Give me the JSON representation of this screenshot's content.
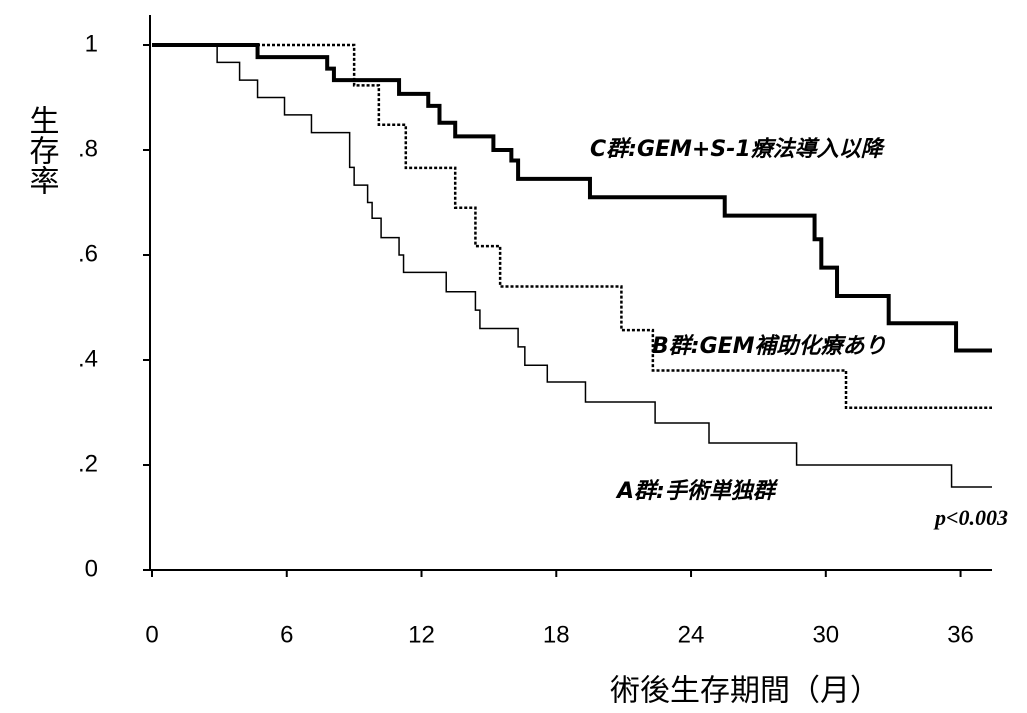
{
  "chart_data": {
    "type": "step",
    "y_label": "生存率",
    "x_label": "術後生存期間（月）",
    "xlim": [
      0,
      37.4
    ],
    "ylim": [
      0,
      1.05
    ],
    "xticks": [
      0,
      6,
      12,
      18,
      24,
      30,
      36
    ],
    "yticks": [
      0,
      {
        "value": 0.2,
        "label": ".2"
      },
      {
        "value": 0.4,
        "label": ".4"
      },
      {
        "value": 0.6,
        "label": ".6"
      },
      {
        "value": 0.8,
        "label": ".8"
      },
      1
    ],
    "annotations": [
      "C群:GEM+S-1療法導入以降",
      "B群:GEM補助化療あり",
      "A群:手術単独群",
      "p<0.003"
    ],
    "series": [
      {
        "color": "#000000",
        "line_width": 4,
        "dash": "none",
        "x": [
          0,
          4.7,
          7.8,
          8.1,
          11,
          12.3,
          12.8,
          13.5,
          15.2,
          16,
          16.3,
          19.5,
          25.5,
          29.5,
          29.8,
          30.5,
          32.8,
          35.8,
          37.4
        ],
        "values": [
          1,
          0.977,
          0.955,
          0.933,
          0.907,
          0.884,
          0.852,
          0.826,
          0.8,
          0.78,
          0.745,
          0.71,
          0.675,
          0.63,
          0.576,
          0.522,
          0.47,
          0.418,
          0.418
        ]
      },
      {
        "color": "#000000",
        "line_width": 2.5,
        "dash": "3 2",
        "x": [
          0,
          9,
          10.1,
          11.3,
          13.5,
          14.4,
          15.5,
          20.9,
          22.3,
          30.9,
          37.4
        ],
        "values": [
          1,
          0.923,
          0.848,
          0.766,
          0.69,
          0.617,
          0.54,
          0.457,
          0.38,
          0.309,
          0.309
        ]
      },
      {
        "color": "#000000",
        "line_width": 1.5,
        "dash": "none",
        "x": [
          0,
          2.9,
          3.9,
          4.7,
          5.9,
          7.1,
          8.8,
          9.0,
          9.6,
          9.8,
          10.2,
          11,
          11.2,
          13.1,
          14.4,
          14.6,
          16.3,
          16.6,
          17.6,
          19.3,
          22.4,
          24.8,
          28.7,
          35.6,
          37.4
        ],
        "values": [
          1,
          0.967,
          0.933,
          0.9,
          0.867,
          0.833,
          0.767,
          0.733,
          0.7,
          0.67,
          0.633,
          0.6,
          0.567,
          0.53,
          0.495,
          0.46,
          0.425,
          0.39,
          0.358,
          0.32,
          0.28,
          0.242,
          0.2,
          0.158,
          0.158
        ]
      }
    ]
  }
}
